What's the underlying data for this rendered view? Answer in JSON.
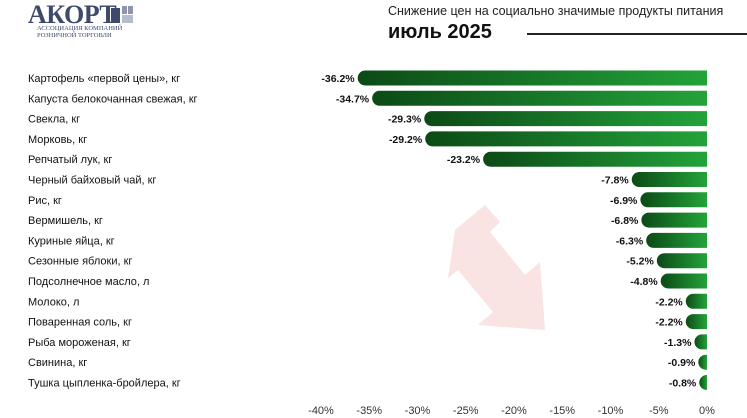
{
  "header": {
    "logo_text": "АКОРТ",
    "logo_sub1": "Ассоциация компаний",
    "logo_sub2": "розничной торговли",
    "subtitle": "Снижение цен на социально значимые продукты питания",
    "title": "июль 2025"
  },
  "colors": {
    "bar_dark": "#0c4a16",
    "bar_light": "#23a33a",
    "watermark": "#f6cccc",
    "logo": "#3e4a6b"
  },
  "chart_data": {
    "type": "bar",
    "orientation": "horizontal",
    "title": "июль 2025",
    "subtitle": "Снижение цен на социально значимые продукты питания",
    "categories": [
      "Картофель «первой цены», кг",
      "Капуста белокочанная свежая, кг",
      "Свекла, кг",
      "Морковь, кг",
      "Репчатый лук, кг",
      "Черный байховый чай, кг",
      "Рис, кг",
      "Вермишель, кг",
      "Куриные яйца, кг",
      "Сезонные яблоки, кг",
      "Подсолнечное масло, л",
      "Молоко, л",
      "Поваренная соль, кг",
      "Рыба мороженая, кг",
      "Свинина, кг",
      "Тушка цыпленка-бройлера, кг"
    ],
    "values": [
      -36.2,
      -34.7,
      -29.3,
      -29.2,
      -23.2,
      -7.8,
      -6.9,
      -6.8,
      -6.3,
      -5.2,
      -4.8,
      -2.2,
      -2.2,
      -1.3,
      -0.9,
      -0.8
    ],
    "value_labels": [
      "-36.2%",
      "-34.7%",
      "-29.3%",
      "-29.2%",
      "-23.2%",
      "-7.8%",
      "-6.9%",
      "-6.8%",
      "-6.3%",
      "-5.2%",
      "-4.8%",
      "-2.2%",
      "-2.2%",
      "-1.3%",
      "-0.9%",
      "-0.8%"
    ],
    "xticks": [
      -40,
      -35,
      -30,
      -25,
      -20,
      -15,
      -10,
      -5,
      0
    ],
    "xtick_labels": [
      "-40%",
      "-35%",
      "-30%",
      "-25%",
      "-20%",
      "-15%",
      "-10%",
      "-5%",
      "0%"
    ],
    "xlim": [
      -40,
      0
    ],
    "grid": false,
    "legend": "none"
  }
}
